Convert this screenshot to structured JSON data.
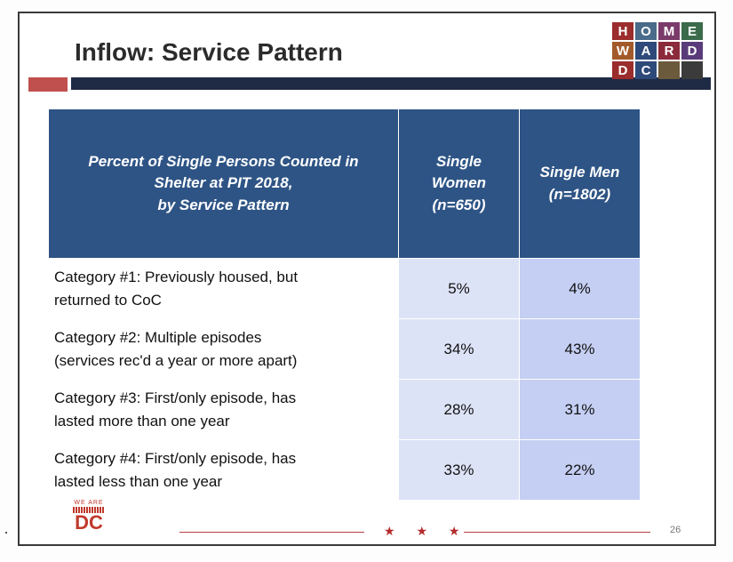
{
  "slide": {
    "title": "Inflow: Service Pattern",
    "page_number": "26",
    "footer_stars": "★ ★ ★"
  },
  "logo": {
    "letters": [
      "H",
      "O",
      "M",
      "E",
      "W",
      "A",
      "R",
      "D",
      "D",
      "C",
      "",
      ""
    ],
    "colors": [
      "#9b2d2d",
      "#4a6b8a",
      "#7a3b6b",
      "#3b6b4a",
      "#a35a2a",
      "#2e4a7a",
      "#8a2a3a",
      "#5a3b7a",
      "#9b2d2d",
      "#2e4a7a",
      "#6b5a3b",
      "#3b3b3b"
    ]
  },
  "brand": {
    "top": "WE ARE",
    "big": "DC"
  },
  "table": {
    "header": {
      "label_lines": [
        "Percent of Single Persons Counted in",
        "Shelter at PIT 2018,",
        "by Service Pattern"
      ],
      "women_lines": [
        "Single",
        "Women",
        "(n=650)"
      ],
      "men_lines": [
        "Single Men",
        "(n=1802)"
      ]
    },
    "rows": [
      {
        "lines": [
          "Category #1: Previously housed, but",
          "returned to CoC"
        ],
        "women": "5%",
        "men": "4%"
      },
      {
        "lines": [
          "Category #2: Multiple episodes",
          "(services rec'd a year or more apart)"
        ],
        "women": "34%",
        "men": "43%"
      },
      {
        "lines": [
          "Category #3: First/only episode, has",
          "lasted more than one year"
        ],
        "women": "28%",
        "men": "31%"
      },
      {
        "lines": [
          "Category #4: First/only episode, has",
          "lasted less than one year"
        ],
        "women": "33%",
        "men": "22%"
      }
    ]
  }
}
